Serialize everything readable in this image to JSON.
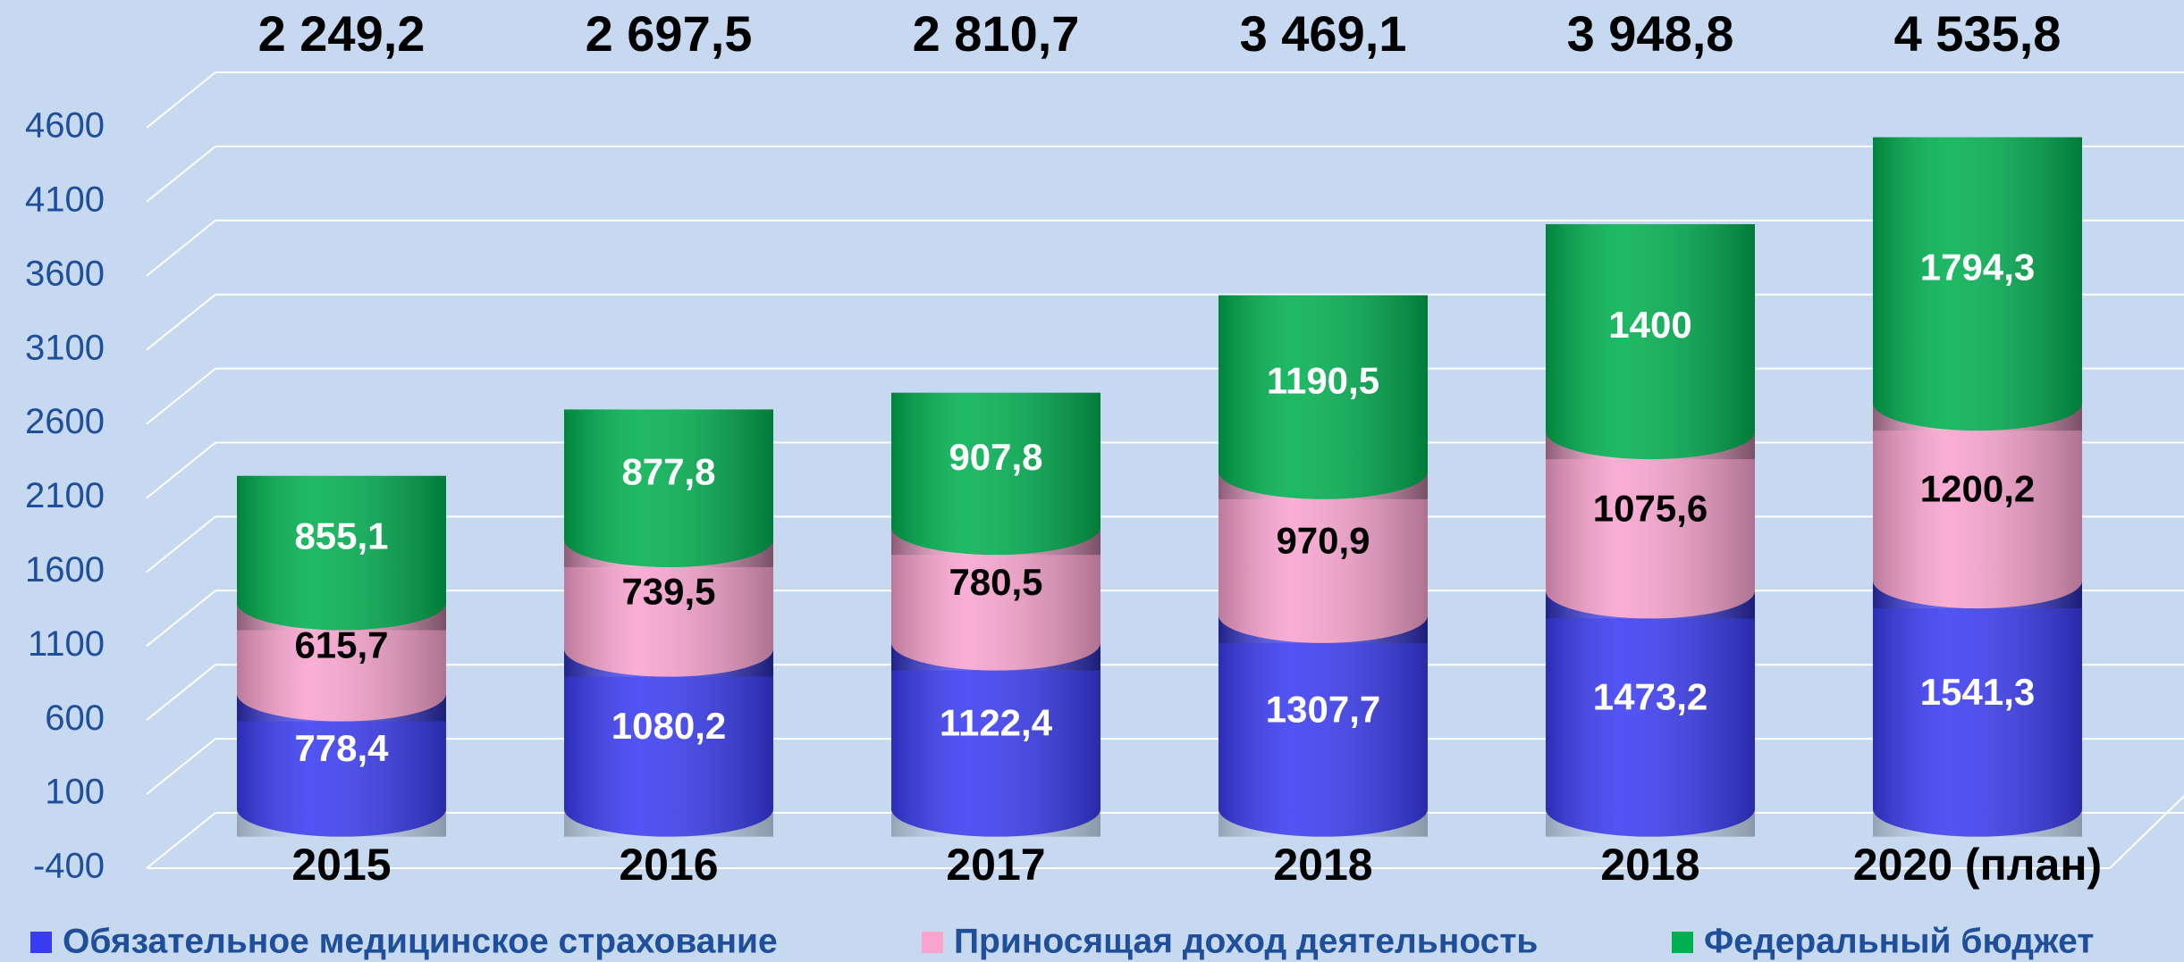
{
  "chart_data": {
    "type": "stacked_cylinder",
    "categories": [
      "2015",
      "2016",
      "2017",
      "2018",
      "2018",
      "2020 (план)"
    ],
    "series": [
      {
        "name": "Обязательное медицинское страхование",
        "color": "#3a3cf2",
        "values": [
          778.4,
          1080.2,
          1122.4,
          1307.7,
          1473.2,
          1541.3
        ],
        "value_labels": [
          "778,4",
          "1080,2",
          "1122,4",
          "1307,7",
          "1473,2",
          "1541,3"
        ]
      },
      {
        "name": "Приносящая доход деятельность",
        "color": "#f9a3cf",
        "values": [
          615.7,
          739.5,
          780.5,
          970.9,
          1075.6,
          1200.2
        ],
        "value_labels": [
          "615,7",
          "739,5",
          "780,5",
          "970,9",
          "1075,6",
          "1200,2"
        ]
      },
      {
        "name": "Федеральный бюджет",
        "color": "#00b050",
        "values": [
          855.1,
          877.8,
          907.8,
          1190.5,
          1400,
          1794.3
        ],
        "value_labels": [
          "855,1",
          "877,8",
          "907,8",
          "1190,5",
          "1400",
          "1794,3"
        ]
      }
    ],
    "totals": [
      2249.2,
      2697.5,
      2810.7,
      3469.1,
      3948.8,
      4535.8
    ],
    "total_labels": [
      "2 249,2",
      "2 697,5",
      "2 810,7",
      "3 469,1",
      "3 948,8",
      "4 535,8"
    ],
    "ylim": [
      -400,
      4600
    ],
    "yticks": [
      -400,
      100,
      600,
      1100,
      1600,
      2100,
      2600,
      3100,
      3600,
      4100,
      4600
    ],
    "grid": true,
    "legend": "bottom"
  }
}
